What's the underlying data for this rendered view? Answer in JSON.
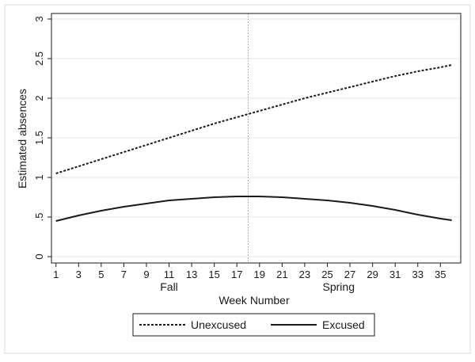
{
  "chart_data": {
    "type": "line",
    "title": "",
    "xlabel": "Week Number",
    "ylabel": "Estimated absences",
    "x_ticks": [
      1,
      3,
      5,
      7,
      9,
      11,
      13,
      15,
      17,
      19,
      21,
      23,
      25,
      27,
      29,
      31,
      33,
      35
    ],
    "y_ticks": [
      0,
      0.5,
      1,
      1.5,
      2,
      2.5,
      3
    ],
    "y_tick_labels": [
      "0",
      ".5",
      "1",
      "1.5",
      "2",
      "2.5",
      "3"
    ],
    "xlim": [
      0.6,
      36.8
    ],
    "ylim": [
      -0.08,
      3.07
    ],
    "grid": "horizontal",
    "reference_line": {
      "x": 18,
      "style": "dotted"
    },
    "period_labels": [
      {
        "text": "Fall",
        "x": 11
      },
      {
        "text": "Spring",
        "x": 26
      }
    ],
    "legend_position": "bottom-center",
    "x": [
      1,
      3,
      5,
      7,
      9,
      11,
      13,
      15,
      17,
      18,
      19,
      21,
      23,
      25,
      27,
      29,
      31,
      33,
      35,
      36
    ],
    "series": [
      {
        "name": "Unexcused",
        "style": "dashed",
        "color": "#1a1a1a",
        "values": [
          1.05,
          1.14,
          1.23,
          1.32,
          1.41,
          1.5,
          1.59,
          1.68,
          1.76,
          1.8,
          1.84,
          1.92,
          2.0,
          2.07,
          2.14,
          2.21,
          2.28,
          2.34,
          2.39,
          2.42
        ]
      },
      {
        "name": "Excused",
        "style": "solid",
        "color": "#1a1a1a",
        "values": [
          0.45,
          0.52,
          0.58,
          0.63,
          0.67,
          0.71,
          0.73,
          0.75,
          0.76,
          0.76,
          0.76,
          0.75,
          0.73,
          0.71,
          0.68,
          0.64,
          0.59,
          0.53,
          0.48,
          0.46
        ]
      }
    ]
  }
}
